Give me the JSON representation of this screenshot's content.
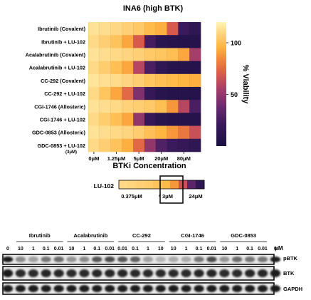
{
  "chart_data": [
    {
      "type": "heatmap",
      "title": "INA6 (high BTK)",
      "xlabel": "BTKi Concentration",
      "colorbar_label": "% Viability",
      "colorbar_ticks": [
        {
          "value": 100,
          "label": "100"
        },
        {
          "value": 50,
          "label": "50"
        }
      ],
      "color_range": [
        0,
        120
      ],
      "colormap": [
        "#1a1042",
        "#3a1a5c",
        "#6a2a6e",
        "#a63e6a",
        "#d85a4c",
        "#f2873a",
        "#ffb640",
        "#ffd27a",
        "#fff4b6"
      ],
      "rows": [
        "Ibrutinib (Covalent)",
        "Ibrutinib + LU-102",
        "Acalabrutinib (Covalent)",
        "Acalabrutinib + LU-102",
        "CC-292 (Covalent)",
        "CC-292 + LU-102",
        "CGI-1746 (Allosteric)",
        "CGI-1746 + LU-102",
        "GDC-0853 (Allosteric)",
        "GDC-0853 + LU-102"
      ],
      "row_sublabel": {
        "row": 9,
        "text": "(3μM)"
      },
      "x_tick_labels": [
        "0μM",
        "1.25μM",
        "5μM",
        "20μM",
        "80μM"
      ],
      "values": [
        [
          112,
          110,
          107,
          104,
          100,
          93,
          88,
          60,
          15,
          10
        ],
        [
          108,
          103,
          97,
          85,
          60,
          18,
          8,
          6,
          5,
          5
        ],
        [
          112,
          110,
          108,
          106,
          104,
          100,
          98,
          95,
          85,
          45
        ],
        [
          108,
          102,
          95,
          85,
          50,
          20,
          10,
          6,
          5,
          5
        ],
        [
          113,
          111,
          109,
          106,
          103,
          98,
          95,
          92,
          90,
          88
        ],
        [
          108,
          98,
          85,
          65,
          35,
          12,
          7,
          5,
          5,
          5
        ],
        [
          112,
          110,
          108,
          105,
          103,
          100,
          95,
          80,
          50,
          20
        ],
        [
          108,
          102,
          95,
          85,
          40,
          12,
          7,
          5,
          5,
          5
        ],
        [
          112,
          110,
          108,
          106,
          102,
          96,
          90,
          80,
          70,
          55
        ],
        [
          108,
          103,
          97,
          88,
          65,
          40,
          22,
          15,
          12,
          10
        ]
      ]
    },
    {
      "type": "heatmap",
      "row_label": "LU-102",
      "values": [
        108,
        106,
        104,
        101,
        97,
        92,
        80,
        55,
        25,
        10
      ],
      "x_tick_labels": [
        "0.375μM",
        "3μM",
        "24μM"
      ],
      "marker": "*",
      "highlight_label": "3μM"
    }
  ],
  "blot": {
    "groups": [
      "Ibrutinib",
      "Acalabrutinib",
      "CC-292",
      "CGI-1746",
      "GDC-0853"
    ],
    "lane_labels": [
      "0",
      "10",
      "1",
      "0.1",
      "0.01",
      "10",
      "1",
      "0.1",
      "0.01",
      "0.01",
      "0.1",
      "1",
      "10",
      "10",
      "1",
      "0.1",
      "0.01",
      "10",
      "1",
      "0.1",
      "0.01",
      "0"
    ],
    "unit": "μM",
    "bands": [
      "pBTK",
      "BTK",
      "GAPDH"
    ],
    "pbtk_intensity": [
      0.95,
      0.45,
      0.35,
      0.55,
      0.6,
      0.4,
      0.45,
      0.7,
      0.75,
      0.7,
      0.65,
      0.35,
      0.25,
      0.3,
      0.3,
      0.55,
      0.75,
      0.4,
      0.6,
      0.55,
      0.55,
      0.95
    ],
    "btk_intensity": [
      0.95,
      0.9,
      0.9,
      0.92,
      0.92,
      0.9,
      0.9,
      0.92,
      0.92,
      0.92,
      0.9,
      0.9,
      0.9,
      0.9,
      0.9,
      0.92,
      0.92,
      0.9,
      0.9,
      0.92,
      0.92,
      0.95
    ],
    "gapdh_intensity": [
      0.95,
      0.95,
      0.95,
      0.95,
      0.95,
      0.95,
      0.95,
      0.95,
      0.95,
      0.95,
      0.95,
      0.95,
      0.95,
      0.95,
      0.95,
      0.95,
      0.95,
      0.95,
      0.95,
      0.95,
      0.95,
      0.95
    ]
  }
}
